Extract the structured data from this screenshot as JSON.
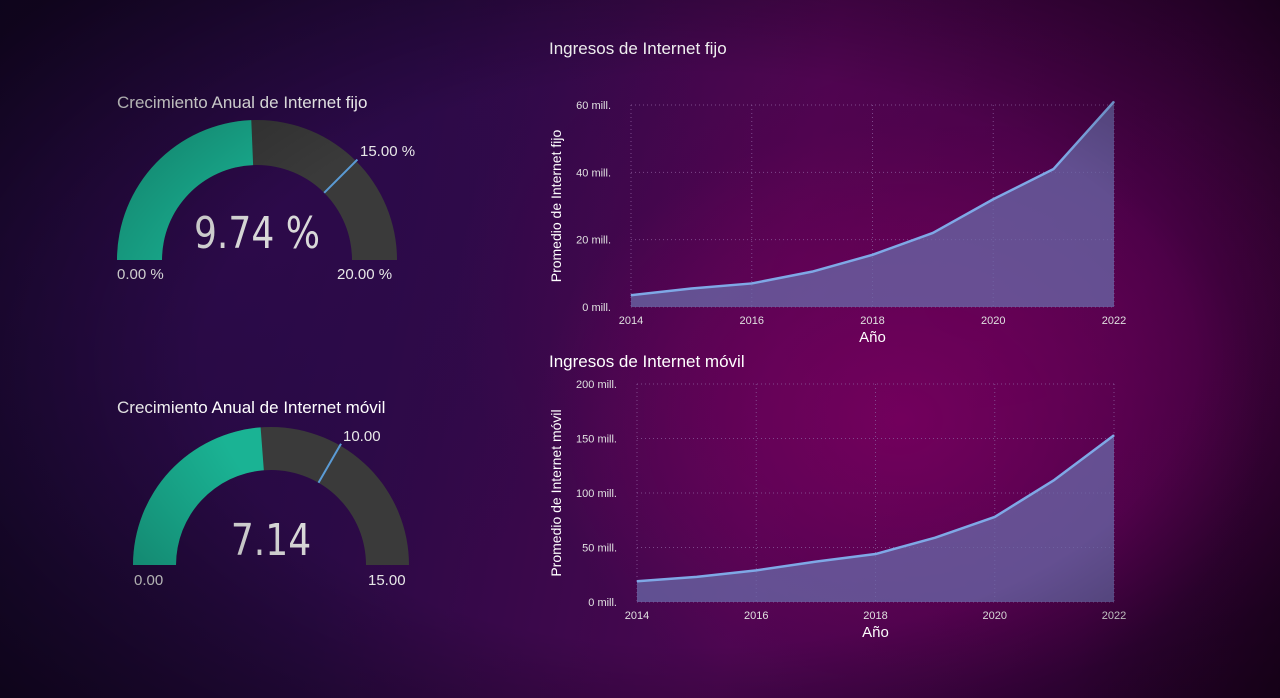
{
  "gauges": [
    {
      "title": "Crecimiento Anual de Internet fijo",
      "value": 9.74,
      "value_label": "9.74 %",
      "min": 0,
      "max": 20,
      "target": 15,
      "min_label": "0.00 %",
      "max_label": "20.00 %",
      "target_label": "15.00 %"
    },
    {
      "title": "Crecimiento Anual de Internet móvil",
      "value": 7.14,
      "value_label": "7.14",
      "min": 0,
      "max": 15,
      "target": 10,
      "min_label": "0.00",
      "max_label": "15.00",
      "target_label": "10.00"
    }
  ],
  "colors": {
    "gauge_fill": "#1ab394",
    "gauge_track": "#3a3a3a",
    "target_line": "#5b9bd5",
    "line": "#7fa8e6",
    "area": "#6a6aa8",
    "grid": "#8a5a9a",
    "tick_text": "#e0e0e0"
  },
  "chart_data": [
    {
      "type": "area",
      "title": "Ingresos de Internet fijo",
      "xlabel": "Año",
      "ylabel": "Promedio de Internet fijo",
      "x": [
        2014,
        2015,
        2016,
        2017,
        2018,
        2019,
        2020,
        2021,
        2022
      ],
      "values": [
        3.5,
        5.5,
        7,
        10.5,
        15.5,
        22,
        32,
        41,
        61
      ],
      "x_ticks": [
        "2014",
        "2016",
        "2018",
        "2020",
        "2022"
      ],
      "y_ticks": [
        "0 mill.",
        "20 mill.",
        "40 mill.",
        "60 mill."
      ],
      "ylim": [
        0,
        60
      ],
      "grid": true
    },
    {
      "type": "area",
      "title": "Ingresos de Internet móvil",
      "xlabel": "Año",
      "ylabel": "Promedio de Internet móvil",
      "x": [
        2014,
        2015,
        2016,
        2017,
        2018,
        2019,
        2020,
        2021,
        2022
      ],
      "values": [
        19,
        23,
        29,
        37,
        44,
        59,
        78,
        112,
        153
      ],
      "x_ticks": [
        "2014",
        "2016",
        "2018",
        "2020",
        "2022"
      ],
      "y_ticks": [
        "0 mill.",
        "50 mill.",
        "100 mill.",
        "150 mill.",
        "200 mill."
      ],
      "ylim": [
        0,
        200
      ],
      "grid": true
    }
  ]
}
